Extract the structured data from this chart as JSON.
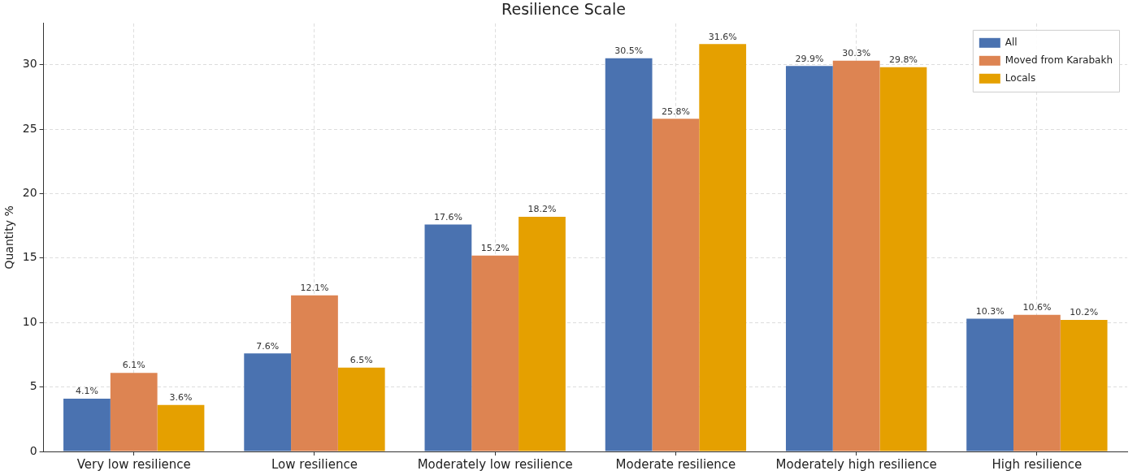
{
  "chart_data": {
    "type": "bar",
    "title": "Resilience Scale",
    "ylabel": "Quantity %",
    "categories": [
      "Very low resilience",
      "Low resilience",
      "Moderately low resilience",
      "Moderate resilience",
      "Moderately high resilience",
      "High resilience"
    ],
    "series": [
      {
        "name": "All",
        "color": "#4a72b0",
        "values": [
          4.1,
          7.6,
          17.6,
          30.5,
          29.9,
          10.3
        ],
        "value_labels": [
          "4.1%",
          "7.6%",
          "17.6%",
          "30.5%",
          "29.9%",
          "10.3%"
        ]
      },
      {
        "name": "Moved from Karabakh",
        "color": "#dd8452",
        "values": [
          6.1,
          12.1,
          15.2,
          25.8,
          30.3,
          10.6
        ],
        "value_labels": [
          "6.1%",
          "12.1%",
          "15.2%",
          "25.8%",
          "30.3%",
          "10.6%"
        ]
      },
      {
        "name": "Locals",
        "color": "#e5a000",
        "values": [
          3.6,
          6.5,
          18.2,
          31.6,
          29.8,
          10.2
        ],
        "value_labels": [
          "3.6%",
          "6.5%",
          "18.2%",
          "31.6%",
          "29.8%",
          "10.2%"
        ]
      }
    ],
    "ylim": [
      0,
      33.2
    ],
    "yticks": [
      0,
      5,
      10,
      15,
      20,
      25,
      30
    ],
    "grid": true,
    "legend": "top right"
  }
}
